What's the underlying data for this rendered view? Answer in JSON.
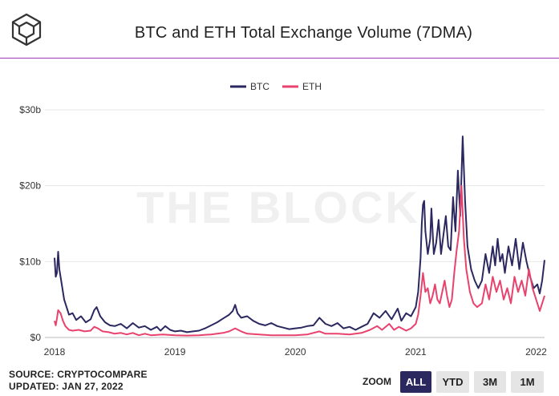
{
  "header": {
    "title": "BTC and ETH Total Exchange Volume (7DMA)",
    "logo_icon": "the-block-cube-icon"
  },
  "watermark": "THE BLOCK",
  "footer": {
    "source": "SOURCE: CRYPTOCOMPARE",
    "updated": "UPDATED: JAN 27, 2022"
  },
  "zoom": {
    "label": "ZOOM",
    "buttons": [
      "ALL",
      "YTD",
      "3M",
      "1M"
    ],
    "selected": "ALL"
  },
  "colors": {
    "btc": "#2b2860",
    "eth": "#e8426d",
    "accent_rule": "#9b3bb6",
    "grid": "#e6e6e6"
  },
  "chart_data": {
    "type": "line",
    "title": "BTC and ETH Total Exchange Volume (7DMA)",
    "legend_position": "top-center",
    "grid": "horizontal",
    "y_ticks": [
      "$0",
      "$10b",
      "$20b",
      "$30b"
    ],
    "x_ticks": [
      "2018",
      "2019",
      "2020",
      "2021",
      "2022"
    ],
    "ylim": [
      0,
      30
    ],
    "y_unit": "USD billions",
    "xlim": [
      2018.0,
      2022.07
    ],
    "series": [
      {
        "name": "BTC",
        "color": "#2b2860",
        "points": [
          [
            2018.0,
            10.5
          ],
          [
            2018.01,
            8.0
          ],
          [
            2018.02,
            8.5
          ],
          [
            2018.03,
            11.3
          ],
          [
            2018.04,
            9.0
          ],
          [
            2018.06,
            7.0
          ],
          [
            2018.08,
            5.0
          ],
          [
            2018.1,
            4.0
          ],
          [
            2018.12,
            3.0
          ],
          [
            2018.15,
            3.2
          ],
          [
            2018.18,
            2.3
          ],
          [
            2018.22,
            2.8
          ],
          [
            2018.26,
            2.0
          ],
          [
            2018.3,
            2.4
          ],
          [
            2018.33,
            3.6
          ],
          [
            2018.35,
            4.0
          ],
          [
            2018.38,
            2.8
          ],
          [
            2018.42,
            2.0
          ],
          [
            2018.46,
            1.6
          ],
          [
            2018.5,
            1.5
          ],
          [
            2018.55,
            1.8
          ],
          [
            2018.6,
            1.2
          ],
          [
            2018.65,
            1.9
          ],
          [
            2018.7,
            1.3
          ],
          [
            2018.75,
            1.5
          ],
          [
            2018.8,
            1.0
          ],
          [
            2018.85,
            1.4
          ],
          [
            2018.88,
            0.9
          ],
          [
            2018.92,
            1.5
          ],
          [
            2018.96,
            1.0
          ],
          [
            2019.0,
            0.8
          ],
          [
            2019.05,
            0.9
          ],
          [
            2019.1,
            0.7
          ],
          [
            2019.15,
            0.8
          ],
          [
            2019.2,
            0.9
          ],
          [
            2019.25,
            1.2
          ],
          [
            2019.3,
            1.6
          ],
          [
            2019.35,
            2.0
          ],
          [
            2019.4,
            2.5
          ],
          [
            2019.45,
            3.0
          ],
          [
            2019.48,
            3.5
          ],
          [
            2019.5,
            4.3
          ],
          [
            2019.52,
            3.2
          ],
          [
            2019.55,
            2.6
          ],
          [
            2019.6,
            2.8
          ],
          [
            2019.65,
            2.2
          ],
          [
            2019.7,
            1.8
          ],
          [
            2019.75,
            1.6
          ],
          [
            2019.8,
            1.9
          ],
          [
            2019.85,
            1.5
          ],
          [
            2019.9,
            1.3
          ],
          [
            2019.95,
            1.1
          ],
          [
            2020.0,
            1.2
          ],
          [
            2020.05,
            1.3
          ],
          [
            2020.1,
            1.5
          ],
          [
            2020.15,
            1.6
          ],
          [
            2020.2,
            2.6
          ],
          [
            2020.25,
            1.8
          ],
          [
            2020.3,
            1.5
          ],
          [
            2020.35,
            1.9
          ],
          [
            2020.4,
            1.2
          ],
          [
            2020.45,
            1.4
          ],
          [
            2020.5,
            1.0
          ],
          [
            2020.55,
            1.4
          ],
          [
            2020.6,
            1.8
          ],
          [
            2020.65,
            3.2
          ],
          [
            2020.7,
            2.6
          ],
          [
            2020.75,
            3.5
          ],
          [
            2020.8,
            2.4
          ],
          [
            2020.85,
            3.8
          ],
          [
            2020.88,
            2.2
          ],
          [
            2020.92,
            3.2
          ],
          [
            2020.96,
            2.8
          ],
          [
            2021.0,
            4.0
          ],
          [
            2021.02,
            6.0
          ],
          [
            2021.04,
            10.5
          ],
          [
            2021.05,
            15.0
          ],
          [
            2021.06,
            17.5
          ],
          [
            2021.07,
            18.0
          ],
          [
            2021.08,
            14.0
          ],
          [
            2021.1,
            11.0
          ],
          [
            2021.12,
            13.0
          ],
          [
            2021.13,
            17.0
          ],
          [
            2021.15,
            11.0
          ],
          [
            2021.17,
            12.5
          ],
          [
            2021.19,
            15.5
          ],
          [
            2021.21,
            11.0
          ],
          [
            2021.23,
            13.5
          ],
          [
            2021.25,
            16.0
          ],
          [
            2021.27,
            12.0
          ],
          [
            2021.29,
            11.5
          ],
          [
            2021.31,
            18.5
          ],
          [
            2021.33,
            14.0
          ],
          [
            2021.35,
            22.0
          ],
          [
            2021.37,
            16.0
          ],
          [
            2021.39,
            26.5
          ],
          [
            2021.41,
            18.0
          ],
          [
            2021.43,
            12.0
          ],
          [
            2021.46,
            9.0
          ],
          [
            2021.49,
            7.5
          ],
          [
            2021.52,
            6.5
          ],
          [
            2021.55,
            7.5
          ],
          [
            2021.58,
            11.0
          ],
          [
            2021.61,
            8.5
          ],
          [
            2021.64,
            12.0
          ],
          [
            2021.66,
            9.5
          ],
          [
            2021.68,
            13.0
          ],
          [
            2021.7,
            10.0
          ],
          [
            2021.72,
            11.0
          ],
          [
            2021.74,
            8.5
          ],
          [
            2021.77,
            12.0
          ],
          [
            2021.8,
            9.5
          ],
          [
            2021.83,
            13.0
          ],
          [
            2021.86,
            9.0
          ],
          [
            2021.89,
            12.5
          ],
          [
            2021.92,
            10.0
          ],
          [
            2021.95,
            8.0
          ],
          [
            2021.98,
            6.5
          ],
          [
            2022.01,
            7.0
          ],
          [
            2022.03,
            5.8
          ],
          [
            2022.05,
            7.5
          ],
          [
            2022.07,
            10.2
          ]
        ]
      },
      {
        "name": "ETH",
        "color": "#e8426d",
        "points": [
          [
            2018.0,
            2.2
          ],
          [
            2018.01,
            1.6
          ],
          [
            2018.02,
            2.5
          ],
          [
            2018.03,
            3.6
          ],
          [
            2018.05,
            3.2
          ],
          [
            2018.07,
            2.2
          ],
          [
            2018.09,
            1.5
          ],
          [
            2018.12,
            1.0
          ],
          [
            2018.15,
            0.9
          ],
          [
            2018.2,
            1.0
          ],
          [
            2018.25,
            0.8
          ],
          [
            2018.3,
            0.9
          ],
          [
            2018.33,
            1.4
          ],
          [
            2018.36,
            1.2
          ],
          [
            2018.4,
            0.8
          ],
          [
            2018.45,
            0.7
          ],
          [
            2018.5,
            0.5
          ],
          [
            2018.55,
            0.6
          ],
          [
            2018.6,
            0.4
          ],
          [
            2018.65,
            0.6
          ],
          [
            2018.7,
            0.3
          ],
          [
            2018.75,
            0.5
          ],
          [
            2018.8,
            0.3
          ],
          [
            2018.9,
            0.4
          ],
          [
            2019.0,
            0.3
          ],
          [
            2019.1,
            0.25
          ],
          [
            2019.2,
            0.3
          ],
          [
            2019.3,
            0.4
          ],
          [
            2019.4,
            0.6
          ],
          [
            2019.45,
            0.8
          ],
          [
            2019.5,
            1.2
          ],
          [
            2019.55,
            0.8
          ],
          [
            2019.6,
            0.5
          ],
          [
            2019.7,
            0.4
          ],
          [
            2019.8,
            0.3
          ],
          [
            2019.9,
            0.3
          ],
          [
            2020.0,
            0.3
          ],
          [
            2020.1,
            0.4
          ],
          [
            2020.2,
            0.8
          ],
          [
            2020.25,
            0.5
          ],
          [
            2020.35,
            0.5
          ],
          [
            2020.45,
            0.4
          ],
          [
            2020.55,
            0.6
          ],
          [
            2020.62,
            1.0
          ],
          [
            2020.68,
            1.5
          ],
          [
            2020.72,
            1.0
          ],
          [
            2020.78,
            1.8
          ],
          [
            2020.82,
            1.0
          ],
          [
            2020.86,
            1.4
          ],
          [
            2020.92,
            0.9
          ],
          [
            2020.96,
            1.2
          ],
          [
            2021.0,
            1.8
          ],
          [
            2021.02,
            3.0
          ],
          [
            2021.04,
            5.5
          ],
          [
            2021.06,
            8.5
          ],
          [
            2021.08,
            6.0
          ],
          [
            2021.1,
            6.5
          ],
          [
            2021.12,
            4.5
          ],
          [
            2021.14,
            5.5
          ],
          [
            2021.16,
            7.0
          ],
          [
            2021.18,
            5.0
          ],
          [
            2021.2,
            4.5
          ],
          [
            2021.22,
            6.0
          ],
          [
            2021.24,
            7.5
          ],
          [
            2021.26,
            5.5
          ],
          [
            2021.28,
            4.0
          ],
          [
            2021.3,
            5.0
          ],
          [
            2021.32,
            8.5
          ],
          [
            2021.34,
            11.5
          ],
          [
            2021.36,
            14.0
          ],
          [
            2021.38,
            20.0
          ],
          [
            2021.4,
            13.0
          ],
          [
            2021.42,
            9.0
          ],
          [
            2021.45,
            6.0
          ],
          [
            2021.48,
            4.5
          ],
          [
            2021.51,
            4.0
          ],
          [
            2021.55,
            4.5
          ],
          [
            2021.58,
            7.0
          ],
          [
            2021.61,
            5.0
          ],
          [
            2021.64,
            8.0
          ],
          [
            2021.67,
            6.0
          ],
          [
            2021.7,
            7.5
          ],
          [
            2021.73,
            5.0
          ],
          [
            2021.76,
            6.5
          ],
          [
            2021.79,
            4.5
          ],
          [
            2021.82,
            8.0
          ],
          [
            2021.85,
            6.0
          ],
          [
            2021.88,
            7.5
          ],
          [
            2021.91,
            5.5
          ],
          [
            2021.94,
            9.0
          ],
          [
            2021.97,
            6.5
          ],
          [
            2022.0,
            5.0
          ],
          [
            2022.03,
            3.5
          ],
          [
            2022.05,
            4.5
          ],
          [
            2022.07,
            5.5
          ]
        ]
      }
    ]
  }
}
